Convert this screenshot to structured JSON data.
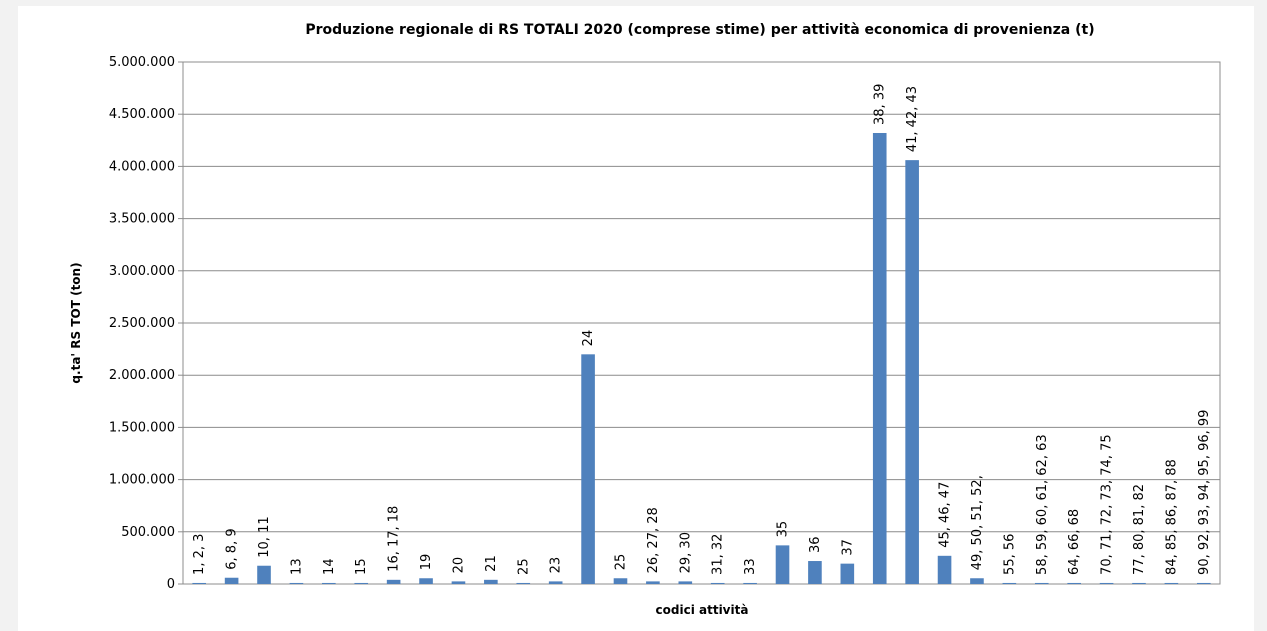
{
  "chart_data": {
    "type": "bar",
    "title": "Produzione regionale di RS TOTALI 2020   (comprese stime) per attività economica di provenienza (t)",
    "y_label": "q.ta' RS TOT (ton)",
    "x_label": "codici attività",
    "categories": [
      "1, 2, 3",
      "6, 8, 9",
      "10, 11",
      "13",
      "14",
      "15",
      "16, 17, 18",
      "19",
      "20",
      "21",
      "25",
      "23",
      "24",
      "25",
      "26, 27, 28",
      "29, 30",
      "31, 32",
      "33",
      "35",
      "36",
      "37",
      "38, 39",
      "41, 42, 43",
      "45, 46, 47",
      "49, 50, 51, 52,",
      "55, 56",
      "58, 59, 60, 61, 62, 63",
      "64, 66, 68",
      "70, 71, 72, 73, 74, 75",
      "77, 80, 81, 82",
      "84, 85, 86, 87, 88",
      "90, 92, 93, 94, 95, 96, 99"
    ],
    "values": [
      10000,
      60000,
      175000,
      10000,
      10000,
      10000,
      40000,
      55000,
      25000,
      40000,
      10000,
      25000,
      2200000,
      55000,
      25000,
      25000,
      10000,
      10000,
      370000,
      220000,
      195000,
      4320000,
      4060000,
      270000,
      55000,
      10000,
      10000,
      10000,
      10000,
      10000,
      10000,
      10000
    ],
    "color": "#4f81bd",
    "ylim": [
      0,
      5000000
    ],
    "yticks": [
      0,
      {
        "value": 500000,
        "label": "500.000"
      },
      {
        "value": 1000000,
        "label": "1.000.000"
      },
      {
        "value": 1500000,
        "label": "1.500.000"
      },
      {
        "value": 2000000,
        "label": "2.000.000"
      },
      {
        "value": 2500000,
        "label": "2.500.000"
      },
      {
        "value": 3000000,
        "label": "3.000.000"
      },
      {
        "value": 3500000,
        "label": "3.500.000"
      },
      {
        "value": 4000000,
        "label": "4.000.000"
      },
      {
        "value": 4500000,
        "label": "4.500.000"
      },
      {
        "value": 5000000,
        "label": "5.000.000"
      }
    ],
    "grid": true
  }
}
